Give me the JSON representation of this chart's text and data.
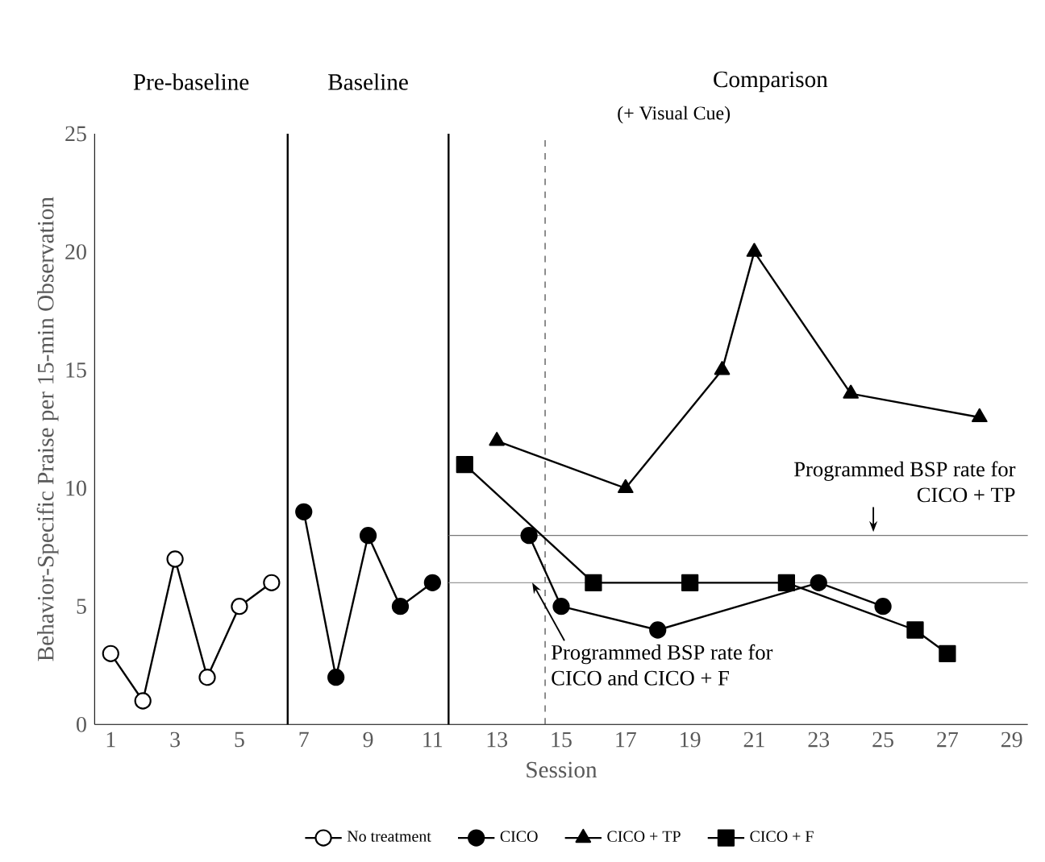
{
  "chart_data": {
    "type": "line",
    "xlabel": "Session",
    "ylabel": "Behavior-Specific Praise per 15-min Observation",
    "xlim": [
      0.5,
      29.5
    ],
    "ylim": [
      0,
      25
    ],
    "xticks": [
      1,
      3,
      5,
      7,
      9,
      11,
      13,
      15,
      17,
      19,
      21,
      23,
      25,
      27,
      29
    ],
    "yticks": [
      0,
      5,
      10,
      15,
      20,
      25
    ],
    "grid": false,
    "legend": "bottom",
    "series": [
      {
        "name": "No treatment",
        "color": "#ffffff",
        "marker": "circle",
        "x": [
          1,
          2,
          3,
          4,
          5,
          6
        ],
        "values": [
          3,
          1,
          7,
          2,
          5,
          6
        ]
      },
      {
        "name": "CICO",
        "color": "#000000",
        "marker": "circle",
        "x": [
          7,
          8,
          9,
          10,
          11,
          12,
          14,
          15,
          18,
          23,
          25
        ],
        "values": [
          9,
          2,
          8,
          5,
          6,
          null,
          8,
          5,
          4,
          6,
          5
        ]
      },
      {
        "name": "CICO + TP",
        "color": "#000000",
        "marker": "triangle",
        "x": [
          13,
          17,
          20,
          21,
          24,
          28
        ],
        "values": [
          12,
          10,
          15,
          20,
          14,
          13
        ]
      },
      {
        "name": "CICO + F",
        "color": "#000000",
        "marker": "square",
        "x": [
          12,
          16,
          19,
          22,
          26,
          27
        ],
        "values": [
          11,
          6,
          6,
          6,
          4,
          3
        ]
      }
    ],
    "ref_lines": [
      {
        "axis": "x",
        "value": 6.5,
        "color": "#000000",
        "line_style": "solid"
      },
      {
        "axis": "x",
        "value": 11.5,
        "color": "#000000",
        "line_style": "solid"
      },
      {
        "axis": "x",
        "value": 14.5,
        "color": "#555555",
        "line_style": "dashed"
      },
      {
        "axis": "y",
        "value": 8,
        "color": "#777777",
        "line_style": "solid"
      },
      {
        "axis": "y",
        "value": 6,
        "color": "#999999",
        "line_style": "solid"
      }
    ],
    "annotations": [
      "Pre-baseline",
      "Baseline",
      "Comparison",
      "(+ Visual Cue)",
      {
        "text": "Programmed BSP rate for CICO + TP",
        "x": 24.7,
        "y": 8
      },
      {
        "text": "Programmed BSP rate for CICO and CICO + F",
        "x": 14.1,
        "y": 6
      }
    ]
  }
}
